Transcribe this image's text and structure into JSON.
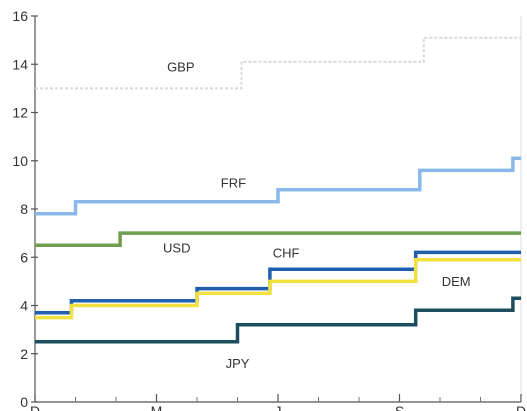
{
  "chart_data": {
    "type": "line",
    "step": true,
    "title": "",
    "xlabel": "",
    "ylabel": "",
    "ylim": [
      0,
      16
    ],
    "yticks": [
      "0",
      "2",
      "4",
      "6",
      "8",
      "10",
      "12",
      "14",
      "16"
    ],
    "xlim": [
      0,
      12
    ],
    "xticks": [
      {
        "label": "D",
        "x": 0
      },
      {
        "label": "M",
        "x": 3
      },
      {
        "label": "J",
        "x": 6
      },
      {
        "label": "S",
        "x": 9
      },
      {
        "label": "D",
        "x": 12
      }
    ],
    "minor_xticks": [
      1,
      2,
      4,
      5,
      7,
      8,
      10,
      11
    ],
    "grid": false,
    "legend": "inline labels",
    "series": [
      {
        "name": "GBP",
        "color": "#d8d8d8",
        "dashed": true,
        "label": {
          "x": 3.6,
          "y": 13.7
        },
        "points": [
          [
            0,
            13.0
          ],
          [
            5.1,
            13.0
          ],
          [
            5.1,
            14.1
          ],
          [
            9.6,
            14.1
          ],
          [
            9.6,
            15.1
          ],
          [
            12,
            15.1
          ]
        ]
      },
      {
        "name": "FRF",
        "color": "#8ab8e8",
        "dashed": false,
        "label": {
          "x": 4.9,
          "y": 8.9
        },
        "points": [
          [
            0,
            7.8
          ],
          [
            1.0,
            7.8
          ],
          [
            1.0,
            8.3
          ],
          [
            6.0,
            8.3
          ],
          [
            6.0,
            8.8
          ],
          [
            9.5,
            8.8
          ],
          [
            9.5,
            9.6
          ],
          [
            11.8,
            9.6
          ],
          [
            11.8,
            10.1
          ],
          [
            12,
            10.1
          ]
        ]
      },
      {
        "name": "USD",
        "color": "#6e9e4e",
        "dashed": false,
        "label": {
          "x": 3.5,
          "y": 6.2
        },
        "points": [
          [
            0,
            6.5
          ],
          [
            2.1,
            6.5
          ],
          [
            2.1,
            7.0
          ],
          [
            12,
            7.0
          ]
        ]
      },
      {
        "name": "CHF",
        "color": "#1f5fae",
        "dashed": false,
        "label": {
          "x": 6.2,
          "y": 6.0
        },
        "points": [
          [
            0,
            3.7
          ],
          [
            0.9,
            3.7
          ],
          [
            0.9,
            4.2
          ],
          [
            4.0,
            4.2
          ],
          [
            4.0,
            4.7
          ],
          [
            5.8,
            4.7
          ],
          [
            5.8,
            5.5
          ],
          [
            9.4,
            5.5
          ],
          [
            9.4,
            6.2
          ],
          [
            12,
            6.2
          ]
        ]
      },
      {
        "name": "DEM",
        "color": "#f0e040",
        "dashed": false,
        "label": {
          "x": 10.4,
          "y": 4.8
        },
        "points": [
          [
            0,
            3.5
          ],
          [
            0.9,
            3.5
          ],
          [
            0.9,
            4.0
          ],
          [
            4.0,
            4.0
          ],
          [
            4.0,
            4.5
          ],
          [
            5.8,
            4.5
          ],
          [
            5.8,
            5.0
          ],
          [
            9.4,
            5.0
          ],
          [
            9.4,
            5.9
          ],
          [
            12,
            5.9
          ]
        ]
      },
      {
        "name": "JPY",
        "color": "#1d4e5e",
        "dashed": false,
        "label": {
          "x": 5.0,
          "y": 1.4
        },
        "points": [
          [
            0,
            2.5
          ],
          [
            5.0,
            2.5
          ],
          [
            5.0,
            3.2
          ],
          [
            9.4,
            3.2
          ],
          [
            9.4,
            3.8
          ],
          [
            11.8,
            3.8
          ],
          [
            11.8,
            4.3
          ],
          [
            12,
            4.3
          ]
        ]
      }
    ]
  }
}
